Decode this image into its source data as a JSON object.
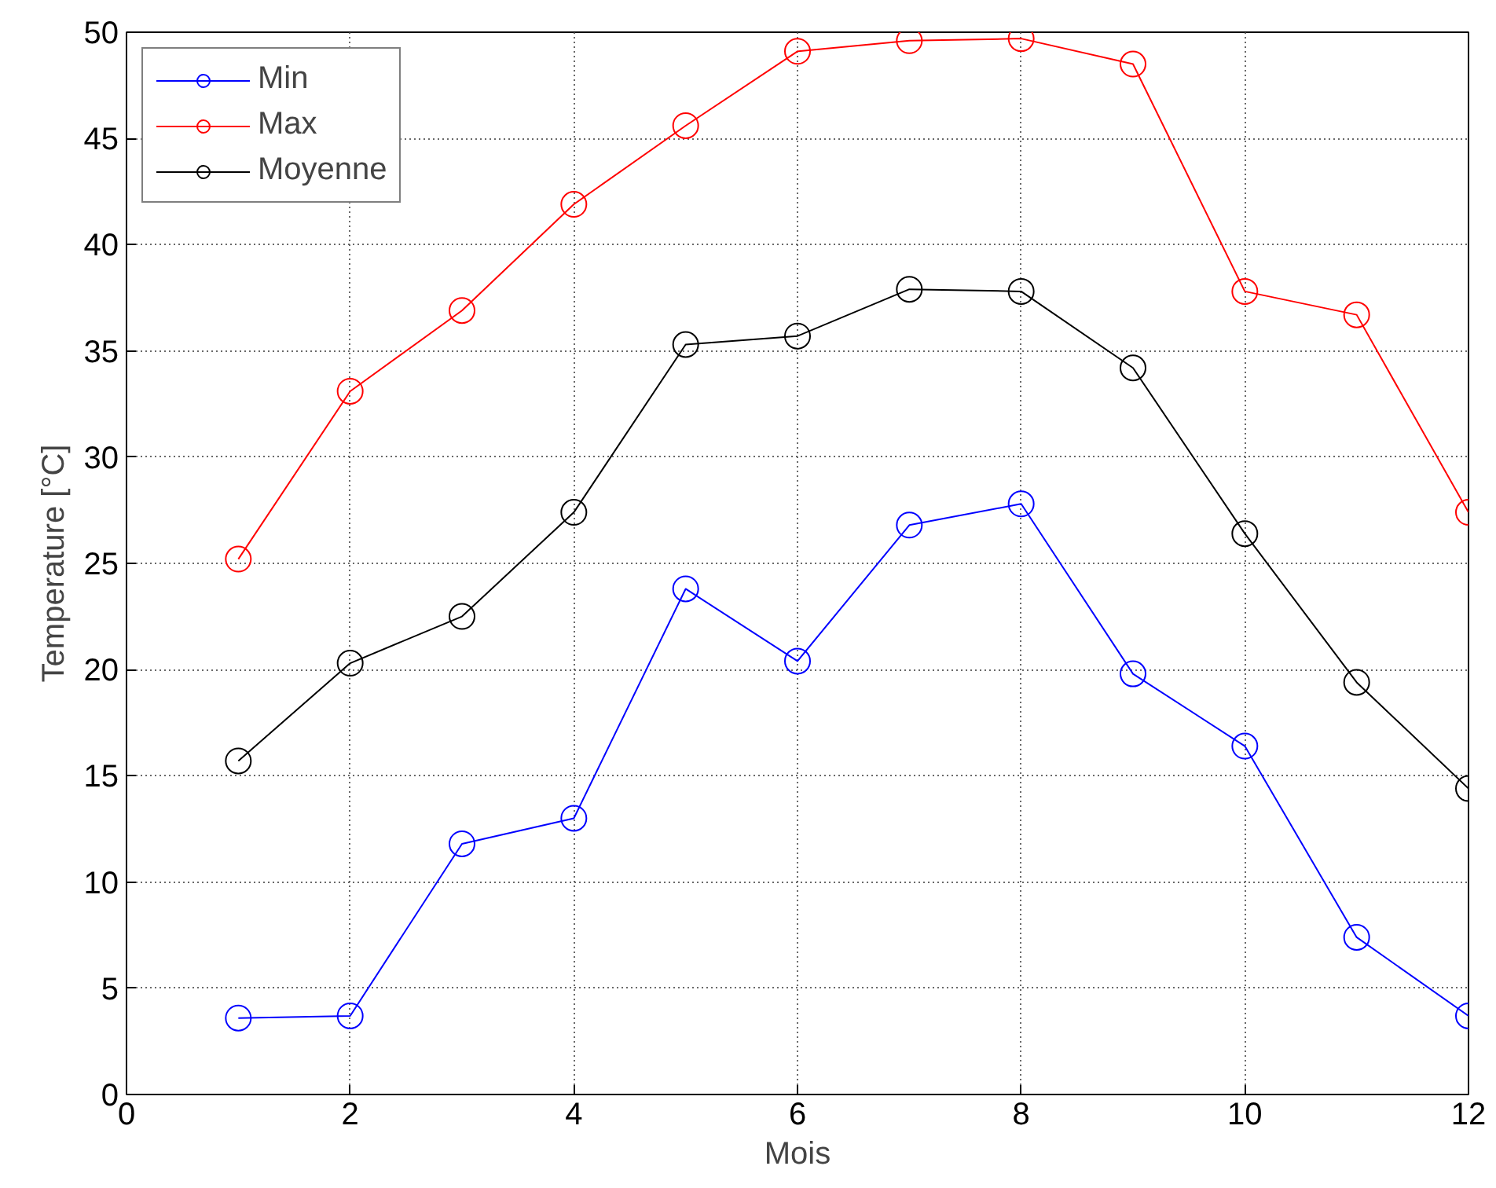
{
  "chart_data": {
    "type": "line",
    "xlabel": "Mois",
    "ylabel": "Temperature [°C]",
    "x": [
      1,
      2,
      3,
      4,
      5,
      6,
      7,
      8,
      9,
      10,
      11,
      12
    ],
    "series": [
      {
        "name": "Min",
        "color": "#0000ff",
        "values": [
          3.6,
          3.7,
          11.8,
          13.0,
          23.8,
          20.4,
          26.8,
          27.8,
          19.8,
          16.4,
          7.4,
          3.7
        ]
      },
      {
        "name": "Max",
        "color": "#ff0000",
        "values": [
          25.2,
          33.1,
          36.9,
          41.9,
          45.6,
          49.1,
          49.6,
          49.7,
          48.5,
          37.8,
          36.7,
          27.4
        ]
      },
      {
        "name": "Moyenne",
        "color": "#000000",
        "values": [
          15.7,
          20.3,
          22.5,
          27.4,
          35.3,
          35.7,
          37.9,
          37.8,
          34.2,
          26.4,
          19.4,
          14.4
        ]
      }
    ],
    "xlim": [
      0,
      12
    ],
    "ylim": [
      0,
      50
    ],
    "xticks": [
      0,
      2,
      4,
      6,
      8,
      10,
      12
    ],
    "yticks": [
      0,
      5,
      10,
      15,
      20,
      25,
      30,
      35,
      40,
      45,
      50
    ],
    "grid": true,
    "legend": "top left",
    "marker": "circle",
    "line_style": "solid"
  }
}
